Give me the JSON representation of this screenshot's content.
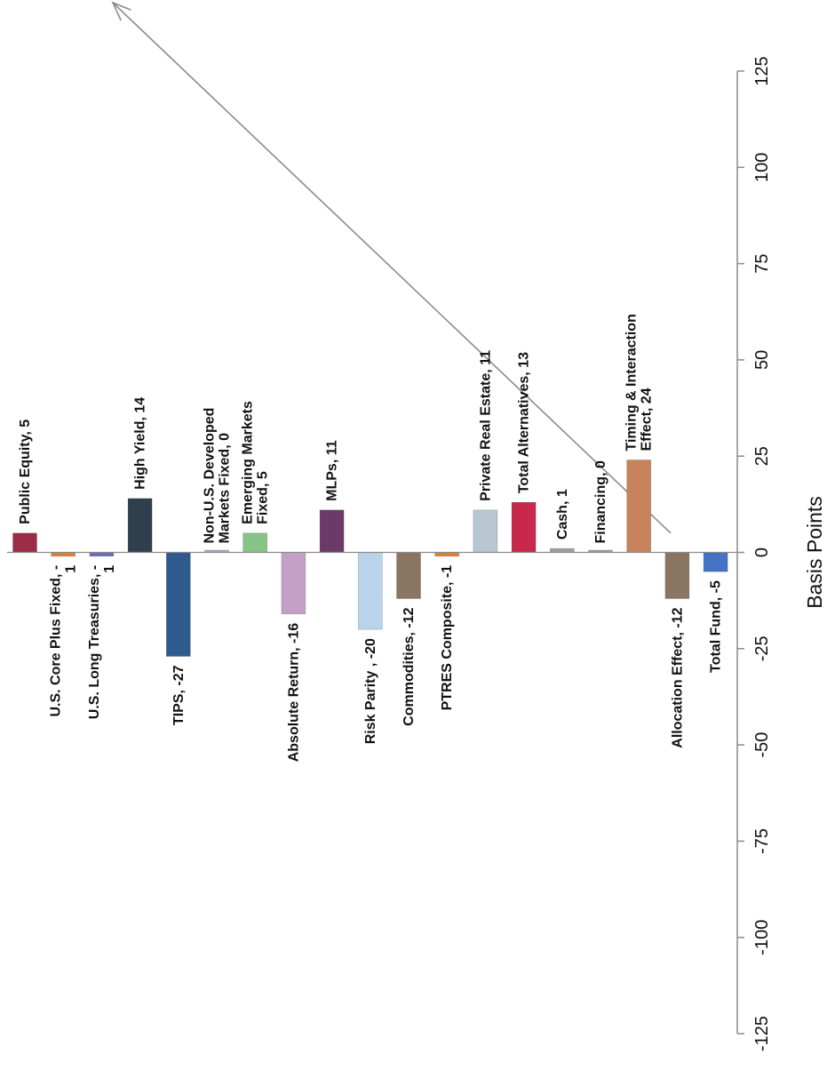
{
  "chart_data": {
    "type": "bar",
    "orientation": "rotated-90-clockwise",
    "xlabel": "Basis Points",
    "ylim": [
      -125,
      125
    ],
    "ticks": [
      -125,
      -100,
      -75,
      -50,
      -25,
      0,
      25,
      50,
      75,
      100,
      125
    ],
    "grid": false,
    "legend": "none",
    "categories": [
      "Public Equity",
      "U.S. Core Plus Fixed",
      "U.S. Long Treasuries",
      "High Yield",
      "TIPS",
      "Non-U.S. Developed Markets Fixed",
      "Emerging Markets Fixed",
      "Absolute Return",
      "MLPs",
      "Risk Parity",
      "Commodities",
      "PTRES Composite",
      "Private Real Estate",
      "Total Alternatives",
      "Cash",
      "Financing",
      "Timing & Interaction Effect",
      "Allocation Effect",
      "Total Fund"
    ],
    "values": [
      5,
      -1,
      -1,
      14,
      -27,
      0,
      5,
      -16,
      11,
      -20,
      -12,
      -1,
      11,
      13,
      1,
      0,
      24,
      -12,
      -5
    ],
    "bars": [
      {
        "label": [
          "Public Equity, 5"
        ],
        "value": 5,
        "color": "#9b2c45"
      },
      {
        "label": [
          "U.S. Core Plus Fixed, -",
          "1"
        ],
        "value": -1,
        "color": "#d9813f"
      },
      {
        "label": [
          "U.S. Long Treasuries, -",
          "1"
        ],
        "value": -1,
        "color": "#6b6fb0"
      },
      {
        "label": [
          "High Yield, 14"
        ],
        "value": 14,
        "color": "#2f3f4e"
      },
      {
        "label": [
          "TIPS, -27"
        ],
        "value": -27,
        "color": "#2f5a8e"
      },
      {
        "label": [
          "Non-U.S. Developed",
          "Markets Fixed, 0"
        ],
        "value": 0,
        "color": "#9fb0c8"
      },
      {
        "label": [
          "Emerging Markets",
          "Fixed, 5"
        ],
        "value": 5,
        "color": "#86c486"
      },
      {
        "label": [
          "Absolute Return, -16"
        ],
        "value": -16,
        "color": "#c49fc8"
      },
      {
        "label": [
          "MLPs, 11"
        ],
        "value": 11,
        "color": "#6b3a68"
      },
      {
        "label": [
          "Risk Parity , -20"
        ],
        "value": -20,
        "color": "#b9d4ea"
      },
      {
        "label": [
          "Commodities, -12"
        ],
        "value": -12,
        "color": "#8a7562"
      },
      {
        "label": [
          "PTRES Composite, -1"
        ],
        "value": -1,
        "color": "#d9813f"
      },
      {
        "label": [
          "Private Real Estate, 11"
        ],
        "value": 11,
        "color": "#b8c7d1"
      },
      {
        "label": [
          "Total Alternatives, 13"
        ],
        "value": 13,
        "color": "#c8284a"
      },
      {
        "label": [
          "Cash, 1"
        ],
        "value": 1,
        "color": "#9aa0a6"
      },
      {
        "label": [
          "Financing, 0"
        ],
        "value": 0,
        "color": "#9aa0a6"
      },
      {
        "label": [
          "Timing & Interaction",
          "Effect, 24"
        ],
        "value": 24,
        "color": "#c8825c"
      },
      {
        "label": [
          "Allocation Effect, -12"
        ],
        "value": -12,
        "color": "#8a7562"
      },
      {
        "label": [
          "Total Fund, -5"
        ],
        "value": -5,
        "color": "#4472c4"
      }
    ],
    "arrow": {
      "from_value": 5,
      "to_value": 125,
      "color": "#8c8c8c"
    }
  }
}
